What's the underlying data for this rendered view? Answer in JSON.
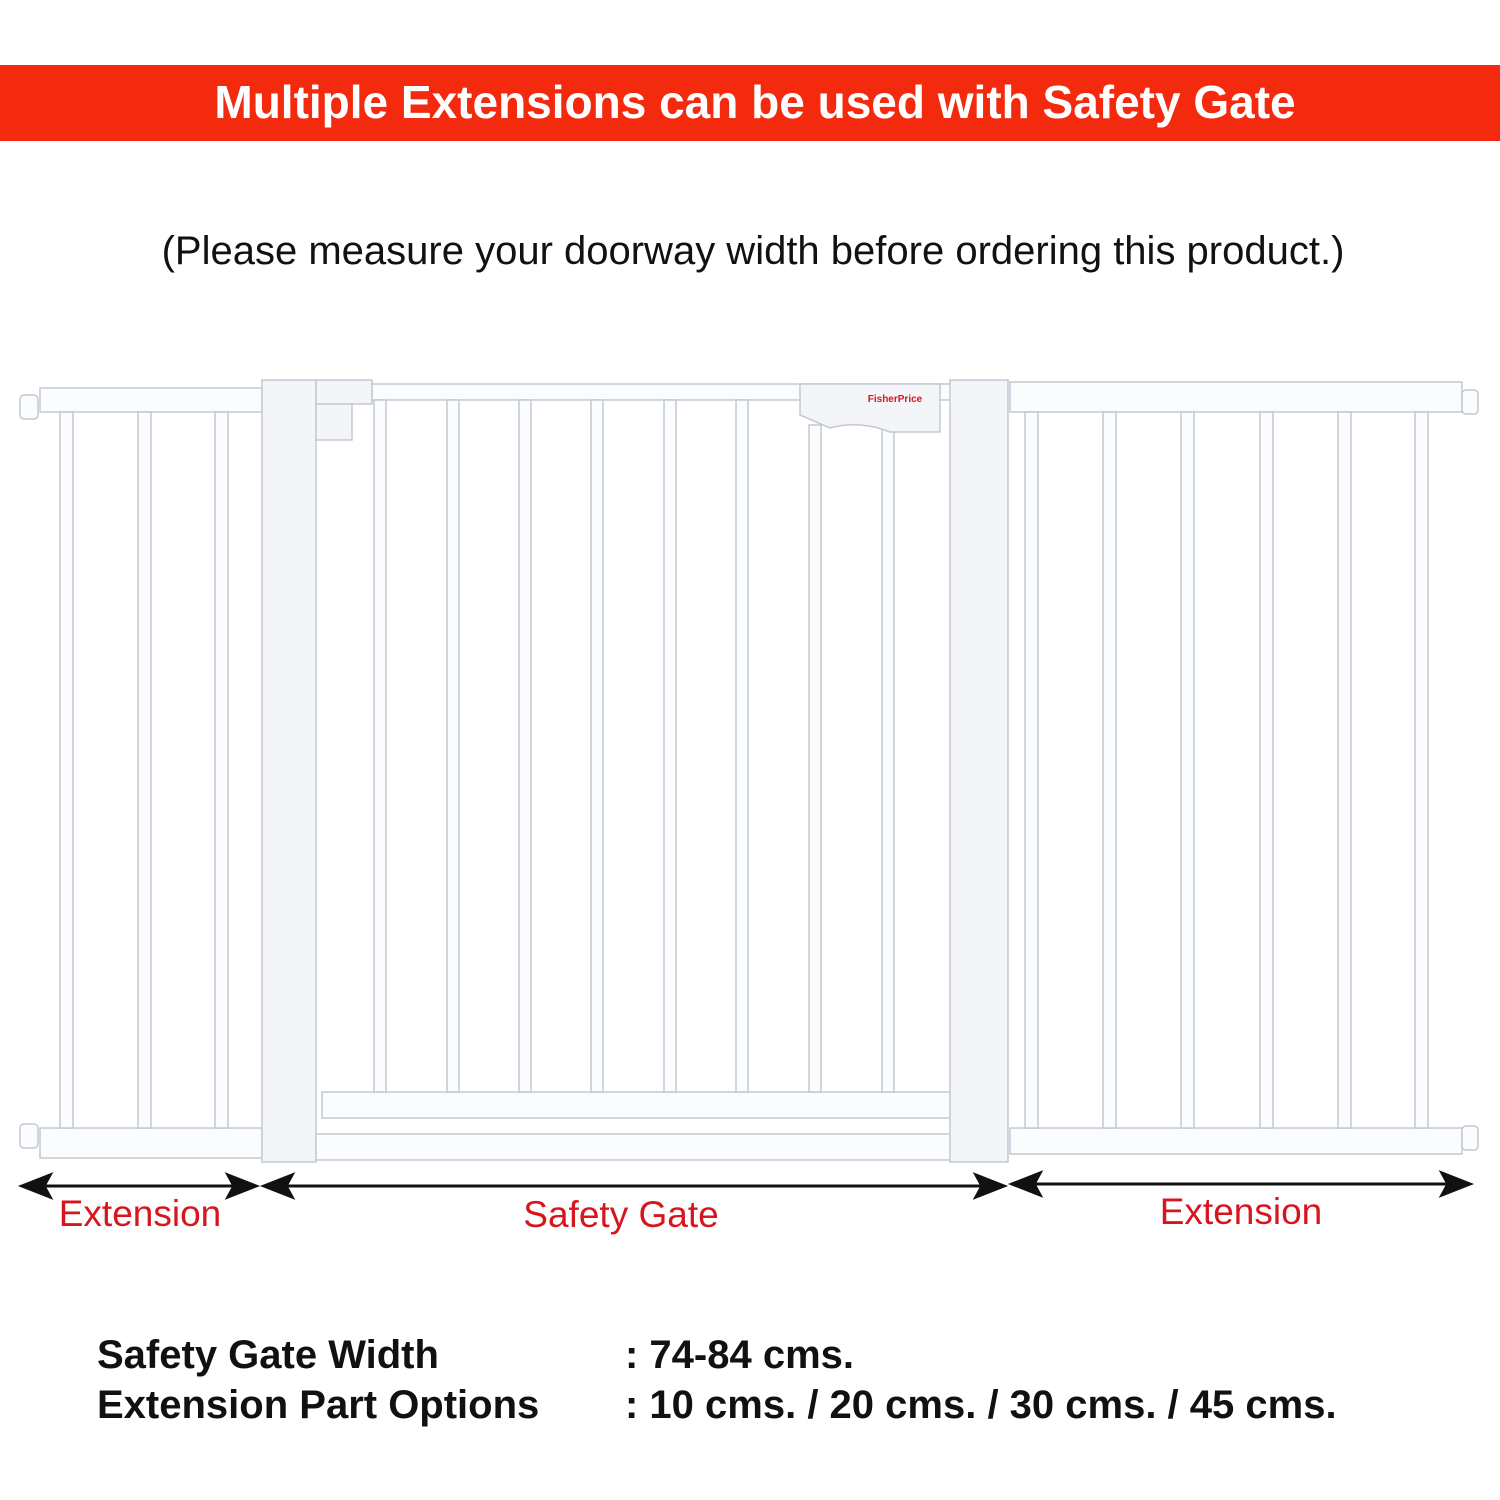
{
  "banner": {
    "title": "Multiple Extensions can be used with Safety Gate"
  },
  "subtitle": "(Please measure your doorway width before ordering this product.)",
  "gate": {
    "logo": "FisherPrice"
  },
  "labels": {
    "left": "Extension",
    "center": "Safety Gate",
    "right": "Extension"
  },
  "specs": {
    "rows": [
      [
        "Safety Gate Width",
        ": 74-84 cms."
      ],
      [
        "Extension Part Options",
        ": 10 cms. / 20 cms. / 30 cms. / 45 cms."
      ]
    ]
  }
}
